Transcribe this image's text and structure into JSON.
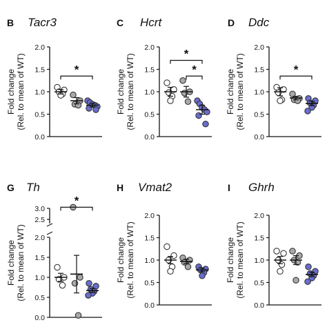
{
  "chart_data": [
    {
      "type": "scatter",
      "panel": "B",
      "gene": "Tacr3",
      "ylabel_line1": "Fold change",
      "ylabel_line2": "(Rel. to mean of WT)",
      "ylim": [
        0,
        2.0
      ],
      "yticks": [
        "0.0",
        "0.5",
        "1.0",
        "1.5",
        "2.0"
      ],
      "ytick_values": [
        0,
        0.5,
        1.0,
        1.5,
        2.0
      ],
      "groups": [
        {
          "color": "#ffffff",
          "mean": 1.0,
          "sem": 0.05,
          "values": [
            1.1,
            1.04,
            1.0,
            0.95,
            0.92
          ]
        },
        {
          "color": "#a9a9a9",
          "mean": 0.8,
          "sem": 0.07,
          "values": [
            0.93,
            0.8,
            0.72,
            0.7
          ]
        },
        {
          "color": "#6a6ecf",
          "mean": 0.7,
          "sem": 0.04,
          "values": [
            0.8,
            0.76,
            0.72,
            0.7,
            0.67,
            0.63,
            0.6
          ]
        }
      ],
      "significance": [
        {
          "from": 0,
          "to": 2,
          "level": 1.35,
          "label": "*"
        }
      ]
    },
    {
      "type": "scatter",
      "panel": "C",
      "gene": "Hcrt",
      "ylabel_line1": "Fold change",
      "ylabel_line2": "(Rel. to mean of WT)",
      "ylim": [
        0,
        2.0
      ],
      "yticks": [
        "0.0",
        "0.5",
        "1.0",
        "1.5",
        "2.0"
      ],
      "ytick_values": [
        0,
        0.5,
        1.0,
        1.5,
        2.0
      ],
      "groups": [
        {
          "color": "#ffffff",
          "mean": 1.0,
          "sem": 0.1,
          "values": [
            1.2,
            1.05,
            0.98,
            0.9,
            0.8
          ]
        },
        {
          "color": "#a9a9a9",
          "mean": 1.0,
          "sem": 0.12,
          "values": [
            1.25,
            1.0,
            0.97,
            0.78
          ]
        },
        {
          "color": "#6a6ecf",
          "mean": 0.6,
          "sem": 0.1,
          "values": [
            0.8,
            0.73,
            0.65,
            0.6,
            0.55,
            0.47,
            0.28
          ]
        }
      ],
      "significance": [
        {
          "from": 0,
          "to": 2,
          "level": 1.7,
          "label": "*"
        },
        {
          "from": 1,
          "to": 2,
          "level": 1.35,
          "label": "*"
        }
      ]
    },
    {
      "type": "scatter",
      "panel": "D",
      "gene": "Ddc",
      "ylabel_line1": "Fold change",
      "ylabel_line2": "(Rel. to mean of WT)",
      "ylim": [
        0,
        2.0
      ],
      "yticks": [
        "0.0",
        "0.5",
        "1.0",
        "1.5",
        "2.0"
      ],
      "ytick_values": [
        0,
        0.5,
        1.0,
        1.5,
        2.0
      ],
      "groups": [
        {
          "color": "#ffffff",
          "mean": 1.0,
          "sem": 0.09,
          "values": [
            1.1,
            1.05,
            0.98,
            0.82,
            0.8
          ]
        },
        {
          "color": "#a9a9a9",
          "mean": 0.86,
          "sem": 0.04,
          "values": [
            0.95,
            0.85,
            0.82,
            0.8
          ]
        },
        {
          "color": "#6a6ecf",
          "mean": 0.74,
          "sem": 0.05,
          "values": [
            0.85,
            0.8,
            0.75,
            0.7,
            0.65,
            0.57
          ]
        }
      ],
      "significance": [
        {
          "from": 0,
          "to": 2,
          "level": 1.35,
          "label": "*"
        }
      ]
    },
    {
      "type": "scatter",
      "panel": "G",
      "gene": "Th",
      "ylabel_line1": "Fold change",
      "ylabel_line2": "(Rel. to mean of WT)",
      "broken_axis": {
        "lower": [
          0,
          2.0
        ],
        "upper": [
          2.5,
          3.0
        ]
      },
      "yticks": [
        "0.0",
        "0.5",
        "1.0",
        "1.5",
        "2.0",
        "2.5",
        "3.0"
      ],
      "ytick_values": [
        0,
        0.5,
        1.0,
        1.5,
        2.0,
        2.5,
        3.0
      ],
      "groups": [
        {
          "color": "#ffffff",
          "mean": 1.0,
          "sem": 0.1,
          "values": [
            1.25,
            1.0,
            0.95,
            0.8
          ]
        },
        {
          "color": "#a9a9a9",
          "mean": 1.08,
          "sem": 0.47,
          "values": [
            3.05,
            1.0,
            0.85,
            0.05
          ]
        },
        {
          "color": "#6a6ecf",
          "mean": 0.67,
          "sem": 0.05,
          "values": [
            0.85,
            0.78,
            0.7,
            0.65,
            0.6,
            0.55
          ]
        }
      ],
      "significance": [
        {
          "from": 0,
          "to": 2,
          "level": 3.05,
          "label": "*"
        }
      ]
    },
    {
      "type": "scatter",
      "panel": "H",
      "gene": "Vmat2",
      "ylabel_line1": "Fold change",
      "ylabel_line2": "(Rel. to mean of WT)",
      "ylim": [
        0,
        2.0
      ],
      "yticks": [
        "0.0",
        "0.5",
        "1.0",
        "1.5",
        "2.0"
      ],
      "ytick_values": [
        0,
        0.5,
        1.0,
        1.5,
        2.0
      ],
      "groups": [
        {
          "color": "#ffffff",
          "mean": 1.0,
          "sem": 0.08,
          "values": [
            1.3,
            1.1,
            1.0,
            0.85,
            0.75
          ]
        },
        {
          "color": "#a9a9a9",
          "mean": 0.97,
          "sem": 0.05,
          "values": [
            1.05,
            1.0,
            0.95,
            0.85
          ]
        },
        {
          "color": "#6a6ecf",
          "mean": 0.78,
          "sem": 0.04,
          "values": [
            0.85,
            0.8,
            0.78,
            0.72,
            0.65
          ]
        }
      ],
      "significance": []
    },
    {
      "type": "scatter",
      "panel": "I",
      "gene": "Ghrh",
      "ylabel_line1": "Fold change",
      "ylabel_line2": "(Rel. to mean of WT)",
      "ylim": [
        0,
        2.0
      ],
      "yticks": [
        "0.0",
        "0.5",
        "1.0",
        "1.5",
        "2.0"
      ],
      "ytick_values": [
        0,
        0.5,
        1.0,
        1.5,
        2.0
      ],
      "groups": [
        {
          "color": "#ffffff",
          "mean": 1.0,
          "sem": 0.08,
          "values": [
            1.2,
            1.15,
            1.0,
            0.9,
            0.75
          ]
        },
        {
          "color": "#a9a9a9",
          "mean": 1.0,
          "sem": 0.1,
          "values": [
            1.2,
            1.1,
            1.0,
            0.95,
            0.55
          ]
        },
        {
          "color": "#6a6ecf",
          "mean": 0.68,
          "sem": 0.05,
          "values": [
            0.85,
            0.75,
            0.7,
            0.65,
            0.6,
            0.52
          ]
        }
      ],
      "significance": []
    }
  ]
}
